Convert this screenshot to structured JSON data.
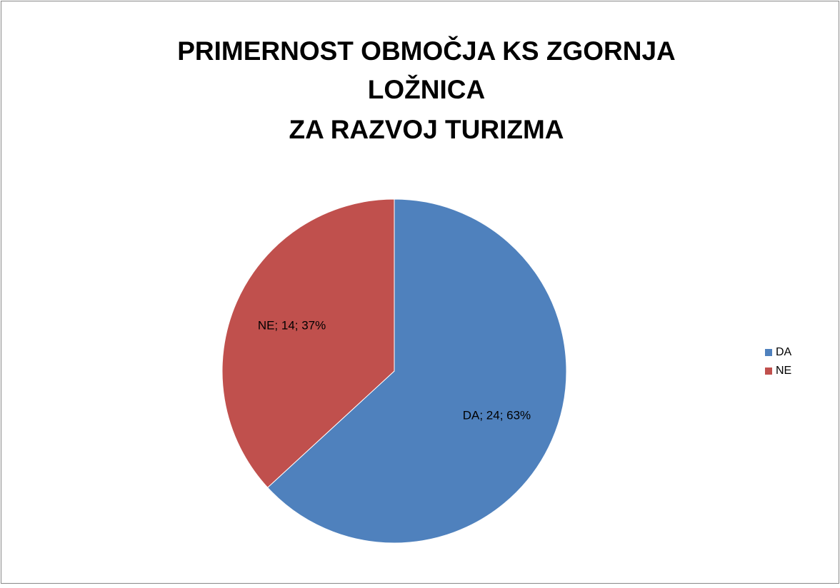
{
  "chart_data": {
    "type": "pie",
    "title": [
      "PRIMERNOST OBMOČJA  KS ZGORNJA",
      "LOŽNICA",
      "ZA RAZVOJ TURIZMA"
    ],
    "categories": [
      "DA",
      "NE"
    ],
    "values": [
      24,
      14
    ],
    "value_labels": [
      "DA; 24; 63%",
      "NE; 14; 37%"
    ],
    "colors": [
      "#4f81bd",
      "#c0504d"
    ],
    "legend": "right"
  }
}
